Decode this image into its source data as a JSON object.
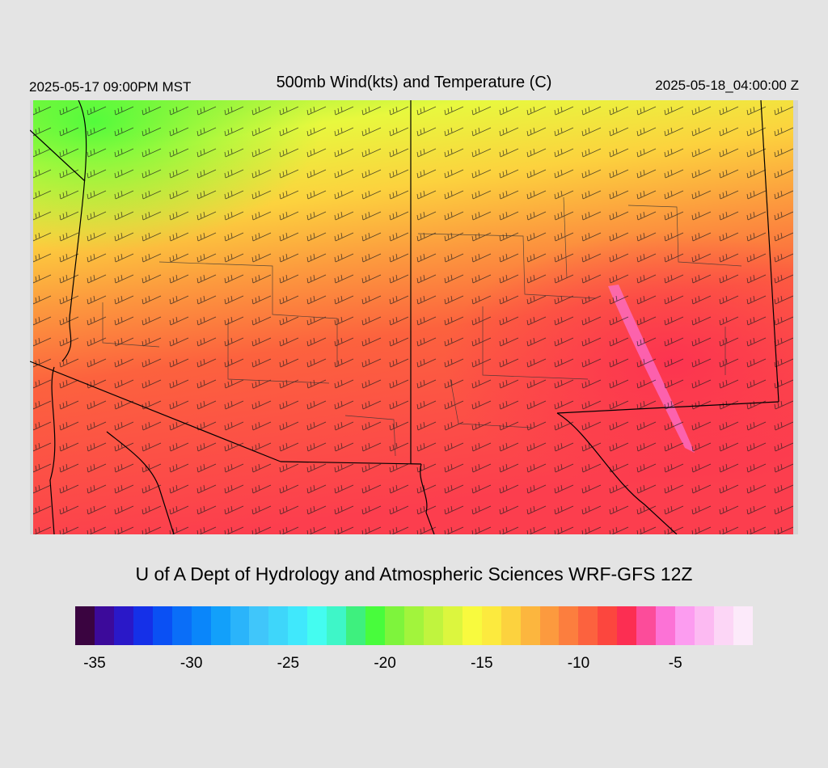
{
  "header": {
    "local_time": "2025-05-17 09:00PM MST",
    "title": "500mb Wind(kts) and Temperature (C)",
    "valid_time": "2025-05-18_04:00:00 Z"
  },
  "credit": "U of A Dept of Hydrology and Atmospheric Sciences WRF-GFS 12Z",
  "colorbar": {
    "min": -36,
    "max": -1,
    "step": 1,
    "tick_labels": [
      "-35",
      "-30",
      "-25",
      "-20",
      "-15",
      "-10",
      "-5"
    ],
    "tick_values": [
      -35,
      -30,
      -25,
      -20,
      -15,
      -10,
      -5
    ],
    "colors": [
      "#3a0440",
      "#3c0a9a",
      "#2a18c8",
      "#1530e8",
      "#0a50f4",
      "#0a6ef8",
      "#0a86fa",
      "#12a0fa",
      "#2ab4fa",
      "#40c6fa",
      "#3ed6fa",
      "#40e8fc",
      "#44fcf0",
      "#3ef6c8",
      "#3ef07e",
      "#48fc3c",
      "#7ef43c",
      "#a2f43c",
      "#c0f43e",
      "#dcf63e",
      "#f8fa3e",
      "#fcea3e",
      "#fcd23e",
      "#fcb63e",
      "#fc9a3e",
      "#fc7e3e",
      "#fc623e",
      "#fc463e",
      "#fc2e52",
      "#fc4c9a",
      "#fc72d6",
      "#fc9cf0",
      "#fcbaf2",
      "#fcd6f6",
      "#fceafa"
    ]
  },
  "map": {
    "field": "500mb temperature (C) with wind barbs (kts)",
    "temperature_range_c": [
      -20,
      -6
    ]
  }
}
